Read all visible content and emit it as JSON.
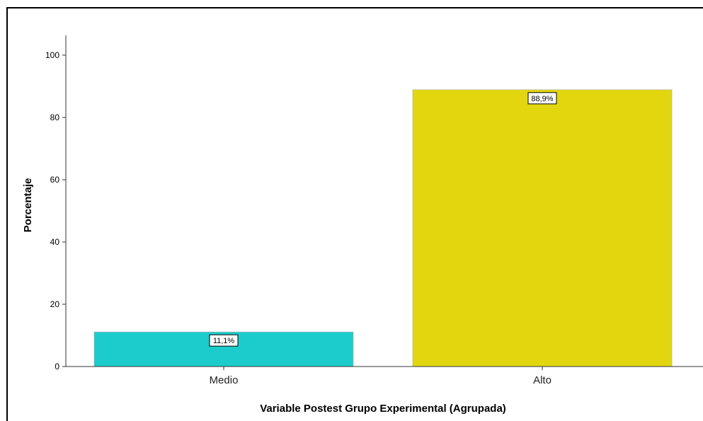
{
  "chart_data": {
    "type": "bar",
    "categories": [
      "Medio",
      "Alto"
    ],
    "values": [
      11.1,
      88.9
    ],
    "data_labels": [
      "11,1%",
      "88,9%"
    ],
    "colors": [
      "#1ccccc",
      "#e2d70e"
    ],
    "title": "",
    "xlabel": "Variable Postest Grupo Experimental (Agrupada)",
    "ylabel": "Porcentaje",
    "ylim": [
      0,
      100
    ],
    "yticks": [
      0,
      20,
      40,
      60,
      80,
      100
    ],
    "grid": false,
    "legend": "none"
  }
}
